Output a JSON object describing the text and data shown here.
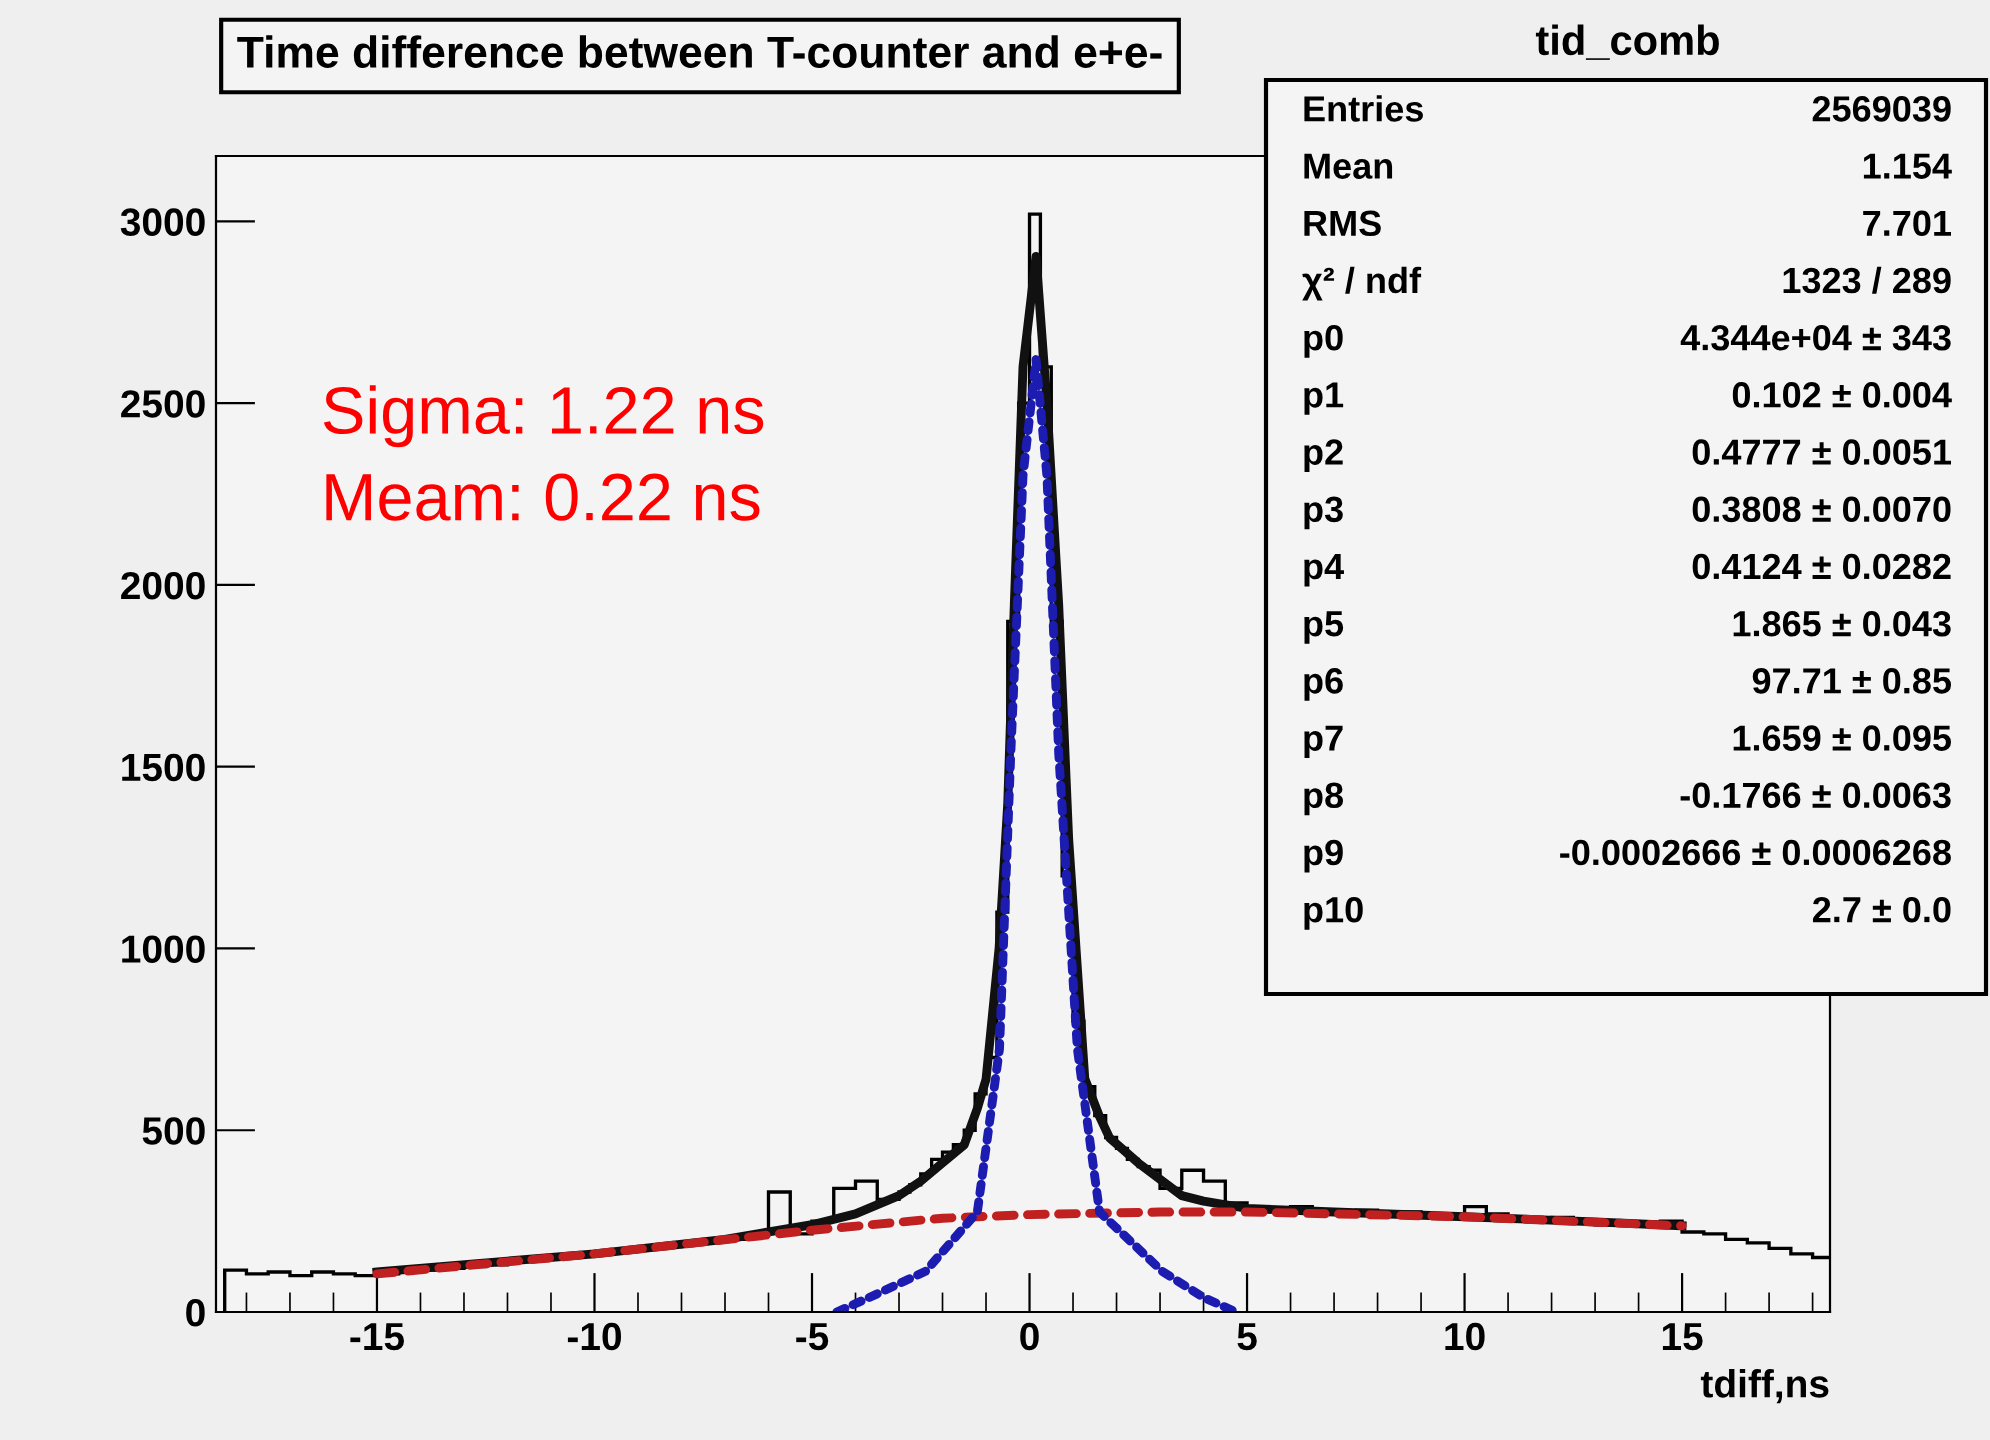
{
  "chart_data": {
    "type": "histogram",
    "title": "Time difference between T-counter and e+e-",
    "xlabel": "tdiff,ns",
    "xlim": [
      -18.7,
      18.4
    ],
    "ylim": [
      0,
      3180
    ],
    "xticks": [
      -15,
      -10,
      -5,
      0,
      5,
      10,
      15
    ],
    "yticks": [
      0,
      500,
      1000,
      1500,
      2000,
      2500,
      3000
    ],
    "color": "#000000",
    "grid": false,
    "legend": false,
    "bins": [
      -18.5,
      -18,
      -17.5,
      -17,
      -16.5,
      -16,
      -15.5,
      -15,
      -14.5,
      -14,
      -13.5,
      -13,
      -12.5,
      -12,
      -11.5,
      -11,
      -10.5,
      -10,
      -9.5,
      -9,
      -8.5,
      -8,
      -7.5,
      -7,
      -6.5,
      -6,
      -5.5,
      -5,
      -4.5,
      -4,
      -3.5,
      -3,
      -2.75,
      -2.5,
      -2.25,
      -2,
      -1.75,
      -1.5,
      -1.25,
      -1,
      -0.75,
      -0.5,
      -0.25,
      0,
      0.25,
      0.5,
      0.75,
      1,
      1.25,
      1.5,
      1.75,
      2,
      2.25,
      2.5,
      2.75,
      3,
      3.5,
      4,
      4.5,
      5,
      5.5,
      6,
      6.5,
      7,
      7.5,
      8,
      8.5,
      9,
      9.5,
      10,
      10.5,
      11,
      11.5,
      12,
      12.5,
      13,
      13.5,
      14,
      14.5,
      15,
      15.5,
      16,
      16.5,
      17,
      17.5,
      18,
      18.5
    ],
    "values": [
      115,
      105,
      110,
      100,
      110,
      105,
      100,
      105,
      110,
      115,
      120,
      125,
      130,
      140,
      145,
      150,
      160,
      165,
      170,
      175,
      180,
      190,
      195,
      200,
      210,
      330,
      215,
      250,
      340,
      360,
      310,
      330,
      350,
      380,
      420,
      440,
      460,
      500,
      600,
      700,
      1100,
      1900,
      2500,
      3020,
      2600,
      1900,
      1200,
      800,
      620,
      540,
      480,
      450,
      420,
      400,
      390,
      340,
      390,
      360,
      300,
      285,
      280,
      290,
      280,
      275,
      280,
      270,
      275,
      265,
      260,
      290,
      270,
      255,
      250,
      260,
      245,
      240,
      245,
      240,
      250,
      220,
      215,
      200,
      190,
      175,
      160,
      150
    ],
    "series": [
      {
        "type": "line",
        "color": "#111111",
        "line_style": "solid",
        "x": [
          -15,
          -10,
          -7,
          -5,
          -4,
          -3,
          -2.5,
          -2,
          -1.5,
          -1.2,
          -1,
          -0.7,
          -0.5,
          -0.35,
          -0.15,
          0.15,
          0.4,
          0.67,
          0.9,
          1.27,
          1.6,
          1.84,
          2.5,
          3.5,
          4,
          5,
          7,
          10,
          13,
          15
        ],
        "values": [
          110,
          160,
          200,
          240,
          270,
          320,
          360,
          410,
          460,
          560,
          640,
          1000,
          1400,
          1946,
          2600,
          2904,
          2500,
          1946,
          1300,
          642,
          540,
          479,
          410,
          320,
          305,
          285,
          275,
          262,
          248,
          237
        ]
      },
      {
        "type": "line",
        "color": "#c02020",
        "line_style": "dashed",
        "x": [
          -15,
          -10,
          -5,
          -2,
          0,
          3,
          5,
          10,
          15
        ],
        "values": [
          105,
          160,
          225,
          258,
          268,
          275,
          275,
          262,
          237
        ]
      },
      {
        "type": "line",
        "color": "#1c1cb0",
        "line_style": "dotted",
        "x": [
          -4.43,
          -3.5,
          -2.39,
          -1.2,
          -0.69,
          -0.43,
          -0.15,
          0.15,
          0.4,
          0.67,
          1.1,
          1.61,
          3.05,
          4,
          4.75
        ],
        "values": [
          0,
          50,
          112,
          275,
          724,
          1539,
          2300,
          2620,
          2300,
          1539,
          724,
          275,
          112,
          40,
          0
        ]
      }
    ],
    "annotations": [
      "Sigma: 1.22 ns",
      "Meam: 0.22 ns",
      "tid_comb",
      "Entries",
      "2569039",
      "Mean",
      "1.154",
      "RMS",
      "7.701",
      "χ² / ndf",
      "1323 / 289",
      "p0",
      "4.344e+04 ± 343",
      "p1",
      "0.102 ± 0.004",
      "p2",
      "0.4777 ± 0.0051",
      "p3",
      "0.3808 ± 0.0070",
      "p4",
      "0.4124 ± 0.0282",
      "p5",
      "1.865 ± 0.043",
      "p6",
      "97.71 ± 0.85",
      "p7",
      "1.659 ± 0.095",
      "p8",
      "-0.1766 ± 0.0063",
      "p9",
      "-0.0002666 ± 0.0006268",
      "p10",
      "2.7 ± 0.0"
    ]
  }
}
